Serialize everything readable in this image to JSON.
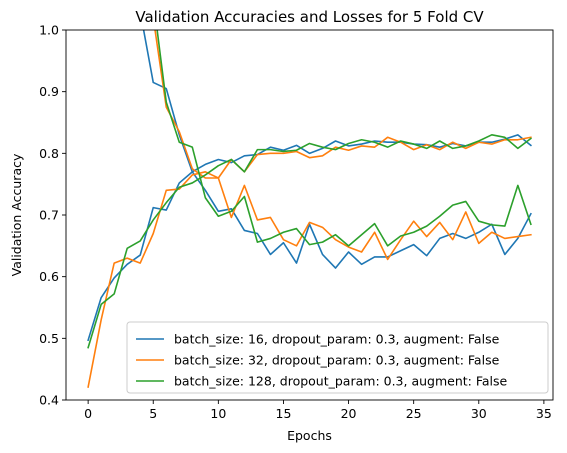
{
  "chart_data": {
    "type": "line",
    "title": "Validation Accuracies and Losses for 5 Fold CV",
    "xlabel": "Epochs",
    "ylabel": "Validation Accuracy",
    "xlim": [
      -1.7,
      35.7
    ],
    "ylim": [
      0.4,
      1.0
    ],
    "xticks": [
      0,
      5,
      10,
      15,
      20,
      25,
      30,
      35
    ],
    "yticks": [
      0.4,
      0.5,
      0.6,
      0.7,
      0.8,
      0.9,
      1.0
    ],
    "ytick_labels": [
      "0.4",
      "0.5",
      "0.6",
      "0.7",
      "0.8",
      "0.9",
      "1.0"
    ],
    "grid": false,
    "legend_position": "bottom-right",
    "x": [
      0,
      1,
      2,
      3,
      4,
      5,
      6,
      7,
      8,
      9,
      10,
      11,
      12,
      13,
      14,
      15,
      16,
      17,
      18,
      19,
      20,
      21,
      22,
      23,
      24,
      25,
      26,
      27,
      28,
      29,
      30,
      31,
      32,
      33,
      34
    ],
    "series": [
      {
        "name": "batch_size: 16, dropout_param: 0.3, augment: False",
        "color": "#1f77b4",
        "accuracy": [
          0.497,
          0.566,
          0.598,
          0.62,
          0.635,
          0.712,
          0.708,
          0.752,
          0.77,
          0.782,
          0.79,
          0.785,
          0.796,
          0.798,
          0.81,
          0.805,
          0.813,
          0.8,
          0.808,
          0.82,
          0.812,
          0.815,
          0.82,
          0.818,
          0.818,
          0.815,
          0.814,
          0.81,
          0.816,
          0.812,
          0.818,
          0.818,
          0.823,
          0.83,
          0.813
        ],
        "loss": [
          1.6,
          1.3,
          1.15,
          1.05,
          1.03,
          0.915,
          0.905,
          0.83,
          0.77,
          0.74,
          0.706,
          0.71,
          0.675,
          0.67,
          0.636,
          0.655,
          0.622,
          0.685,
          0.636,
          0.614,
          0.64,
          0.62,
          0.632,
          0.632,
          0.642,
          0.652,
          0.634,
          0.662,
          0.67,
          0.662,
          0.672,
          0.685,
          0.636,
          0.662,
          0.702
        ]
      },
      {
        "name": "batch_size: 32, dropout_param: 0.3, augment: False",
        "color": "#ff7f0e",
        "accuracy": [
          0.421,
          0.53,
          0.622,
          0.63,
          0.622,
          0.67,
          0.74,
          0.742,
          0.765,
          0.77,
          0.76,
          0.79,
          0.77,
          0.798,
          0.8,
          0.8,
          0.803,
          0.793,
          0.796,
          0.81,
          0.805,
          0.812,
          0.81,
          0.826,
          0.818,
          0.806,
          0.814,
          0.806,
          0.818,
          0.808,
          0.818,
          0.815,
          0.822,
          0.822,
          0.826
        ],
        "loss": [
          1.7,
          1.45,
          1.25,
          1.15,
          1.05,
          1.02,
          0.875,
          0.835,
          0.775,
          0.76,
          0.76,
          0.696,
          0.748,
          0.692,
          0.696,
          0.66,
          0.65,
          0.688,
          0.68,
          0.66,
          0.648,
          0.64,
          0.672,
          0.628,
          0.66,
          0.69,
          0.665,
          0.688,
          0.66,
          0.705,
          0.654,
          0.672,
          0.662,
          0.665,
          0.668
        ]
      },
      {
        "name": "batch_size: 128, dropout_param: 0.3, augment: False",
        "color": "#2ca02c",
        "accuracy": [
          0.485,
          0.555,
          0.572,
          0.646,
          0.658,
          0.692,
          0.72,
          0.745,
          0.752,
          0.765,
          0.78,
          0.79,
          0.77,
          0.806,
          0.806,
          0.803,
          0.805,
          0.816,
          0.81,
          0.806,
          0.816,
          0.822,
          0.818,
          0.81,
          0.82,
          0.815,
          0.808,
          0.82,
          0.808,
          0.812,
          0.82,
          0.83,
          0.826,
          0.808,
          0.824
        ],
        "loss": [
          1.7,
          1.4,
          1.2,
          1.1,
          1.05,
          1.05,
          0.883,
          0.818,
          0.81,
          0.728,
          0.698,
          0.706,
          0.73,
          0.656,
          0.662,
          0.672,
          0.678,
          0.652,
          0.656,
          0.668,
          0.65,
          0.668,
          0.686,
          0.65,
          0.666,
          0.672,
          0.682,
          0.698,
          0.716,
          0.722,
          0.69,
          0.684,
          0.682,
          0.748,
          0.685
        ]
      }
    ]
  }
}
